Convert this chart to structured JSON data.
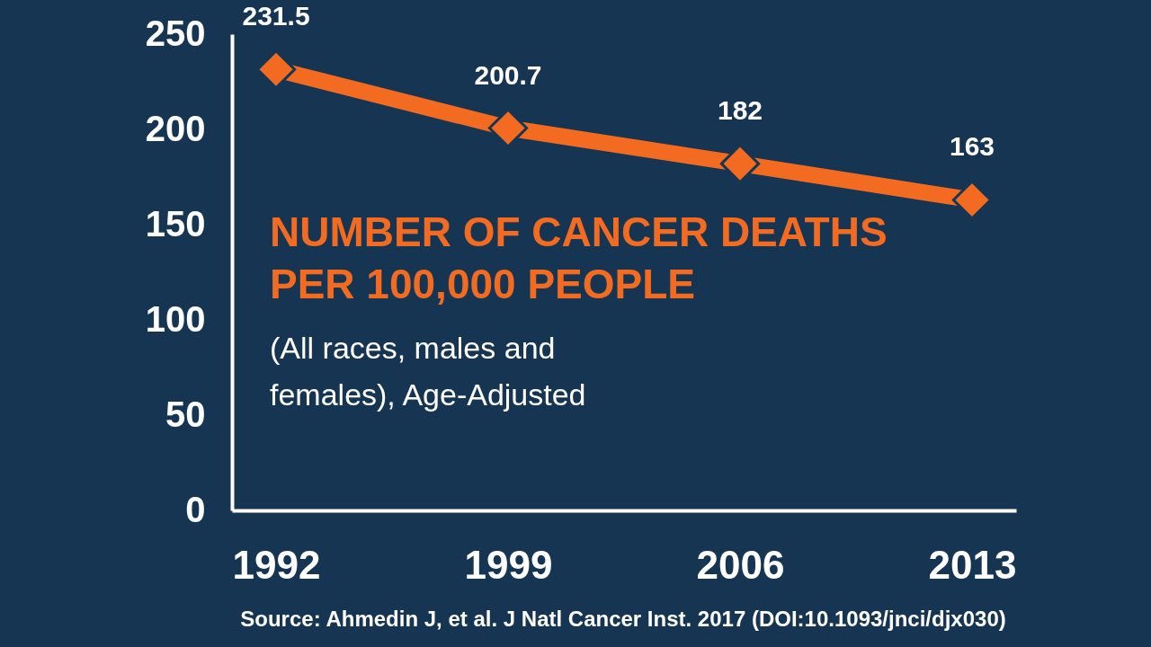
{
  "chart_data": {
    "type": "line",
    "title": "NUMBER OF CANCER DEATHS PER 100,000 PEOPLE",
    "subtitle": "(All races, males and females), Age-Adjusted",
    "annotations": [
      "Source: Ahmedin J, et al. J Natl Cancer Inst. 2017 (DOI:10.1093/jnci/djx030)"
    ],
    "categories": [
      "1992",
      "1999",
      "2006",
      "2013"
    ],
    "series": [
      {
        "color": "#f26b21",
        "values": [
          231.5,
          200.7,
          182,
          163
        ]
      }
    ],
    "ylim": [
      0,
      250
    ],
    "yticks": [
      0,
      50,
      100,
      150,
      200,
      250
    ],
    "grid": false,
    "legend": false,
    "marker": "diamond",
    "line_style": "solid",
    "data_labels": true
  }
}
